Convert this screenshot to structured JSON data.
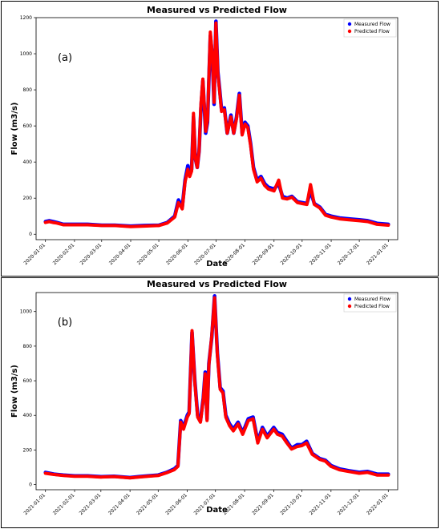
{
  "chart_data": [
    {
      "panel_label": "(a)",
      "type": "line",
      "title": "Measured vs Predicted Flow",
      "xlabel": "Date",
      "ylabel": "Flow (m3/s)",
      "x_ticks": [
        "2020-01-01",
        "2020-02-01",
        "2020-03-01",
        "2020-04-01",
        "2020-05-01",
        "2020-06-01",
        "2020-07-01",
        "2020-08-01",
        "2020-09-01",
        "2020-10-01",
        "2020-11-01",
        "2020-12-01",
        "2021-01-01"
      ],
      "y_ticks": [
        0,
        200,
        400,
        600,
        800,
        1000,
        1200
      ],
      "ylim": [
        -30,
        1200
      ],
      "legend_position": "top-right",
      "series": [
        {
          "name": "Measured Flow",
          "color": "#0000ff"
        },
        {
          "name": "Predicted Flow",
          "color": "#ff0000"
        }
      ],
      "x": [
        "2020-01-01",
        "2020-01-05",
        "2020-01-09",
        "2020-01-13",
        "2020-01-20",
        "2020-02-01",
        "2020-02-15",
        "2020-03-01",
        "2020-03-15",
        "2020-04-01",
        "2020-04-15",
        "2020-05-01",
        "2020-05-10",
        "2020-05-18",
        "2020-05-22",
        "2020-05-26",
        "2020-05-29",
        "2020-06-01",
        "2020-06-03",
        "2020-06-05",
        "2020-06-07",
        "2020-06-09",
        "2020-06-11",
        "2020-06-13",
        "2020-06-15",
        "2020-06-17",
        "2020-06-20",
        "2020-06-22",
        "2020-06-25",
        "2020-06-27",
        "2020-06-29",
        "2020-07-01",
        "2020-07-03",
        "2020-07-05",
        "2020-07-07",
        "2020-07-10",
        "2020-07-13",
        "2020-07-17",
        "2020-07-20",
        "2020-07-23",
        "2020-07-26",
        "2020-07-29",
        "2020-08-01",
        "2020-08-04",
        "2020-08-07",
        "2020-08-10",
        "2020-08-14",
        "2020-08-18",
        "2020-08-22",
        "2020-08-26",
        "2020-09-01",
        "2020-09-06",
        "2020-09-10",
        "2020-09-15",
        "2020-09-20",
        "2020-09-26",
        "2020-10-01",
        "2020-10-06",
        "2020-10-10",
        "2020-10-14",
        "2020-10-20",
        "2020-10-26",
        "2020-11-01",
        "2020-11-10",
        "2020-11-20",
        "2020-12-01",
        "2020-12-10",
        "2020-12-20",
        "2021-01-01"
      ],
      "measured": [
        70,
        75,
        70,
        65,
        55,
        55,
        55,
        50,
        50,
        45,
        48,
        50,
        65,
        100,
        190,
        150,
        300,
        380,
        330,
        360,
        650,
        420,
        370,
        460,
        700,
        850,
        560,
        620,
        1100,
        990,
        720,
        1180,
        900,
        800,
        690,
        700,
        560,
        660,
        560,
        650,
        780,
        560,
        620,
        600,
        500,
        370,
        300,
        320,
        280,
        260,
        250,
        280,
        210,
        200,
        210,
        180,
        175,
        170,
        240,
        170,
        150,
        110,
        100,
        90,
        85,
        80,
        75,
        60,
        55
      ],
      "predicted": [
        65,
        70,
        65,
        62,
        52,
        52,
        52,
        48,
        48,
        42,
        45,
        48,
        62,
        95,
        175,
        140,
        290,
        360,
        320,
        350,
        670,
        420,
        370,
        460,
        720,
        860,
        570,
        630,
        1120,
        1000,
        730,
        1170,
        890,
        790,
        680,
        690,
        560,
        650,
        560,
        640,
        770,
        550,
        610,
        590,
        490,
        360,
        290,
        310,
        270,
        250,
        240,
        300,
        200,
        195,
        205,
        175,
        170,
        165,
        275,
        165,
        145,
        105,
        95,
        85,
        80,
        75,
        70,
        55,
        50
      ]
    },
    {
      "panel_label": "(b)",
      "type": "line",
      "title": "Measured vs Predicted Flow",
      "xlabel": "Date",
      "ylabel": "Flow (m3/s)",
      "x_ticks": [
        "2021-01-01",
        "2021-02-01",
        "2021-03-01",
        "2021-04-01",
        "2021-05-01",
        "2021-06-01",
        "2021-07-01",
        "2021-08-01",
        "2021-09-01",
        "2021-10-01",
        "2021-11-01",
        "2021-12-01",
        "2022-01-01"
      ],
      "y_ticks": [
        0,
        200,
        400,
        600,
        800,
        1000
      ],
      "ylim": [
        -30,
        1110
      ],
      "legend_position": "top-right",
      "series": [
        {
          "name": "Measured Flow",
          "color": "#0000ff"
        },
        {
          "name": "Predicted Flow",
          "color": "#ff0000"
        }
      ],
      "x": [
        "2021-01-01",
        "2021-01-10",
        "2021-01-20",
        "2021-02-01",
        "2021-02-15",
        "2021-03-01",
        "2021-03-15",
        "2021-04-01",
        "2021-04-10",
        "2021-04-20",
        "2021-05-01",
        "2021-05-10",
        "2021-05-18",
        "2021-05-22",
        "2021-05-25",
        "2021-05-28",
        "2021-06-01",
        "2021-06-03",
        "2021-06-06",
        "2021-06-09",
        "2021-06-12",
        "2021-06-15",
        "2021-06-18",
        "2021-06-20",
        "2021-06-22",
        "2021-06-24",
        "2021-06-27",
        "2021-06-30",
        "2021-07-03",
        "2021-07-06",
        "2021-07-09",
        "2021-07-12",
        "2021-07-16",
        "2021-07-20",
        "2021-07-25",
        "2021-07-30",
        "2021-08-05",
        "2021-08-10",
        "2021-08-15",
        "2021-08-20",
        "2021-08-25",
        "2021-09-01",
        "2021-09-05",
        "2021-09-10",
        "2021-09-15",
        "2021-09-20",
        "2021-09-26",
        "2021-10-01",
        "2021-10-06",
        "2021-10-12",
        "2021-10-20",
        "2021-10-26",
        "2021-11-01",
        "2021-11-10",
        "2021-11-20",
        "2021-12-01",
        "2021-12-10",
        "2021-12-20",
        "2022-01-01"
      ],
      "measured": [
        70,
        60,
        55,
        50,
        50,
        45,
        48,
        40,
        45,
        50,
        55,
        70,
        90,
        110,
        370,
        330,
        400,
        420,
        880,
        600,
        400,
        370,
        500,
        650,
        380,
        700,
        850,
        1090,
        760,
        560,
        540,
        400,
        350,
        320,
        360,
        300,
        380,
        390,
        250,
        330,
        280,
        330,
        300,
        290,
        250,
        210,
        230,
        230,
        250,
        180,
        150,
        140,
        110,
        90,
        80,
        70,
        75,
        60,
        60
      ],
      "predicted": [
        65,
        58,
        52,
        48,
        48,
        43,
        46,
        38,
        43,
        48,
        52,
        68,
        85,
        105,
        360,
        320,
        390,
        410,
        890,
        590,
        390,
        360,
        490,
        640,
        370,
        690,
        860,
        1080,
        750,
        550,
        530,
        390,
        340,
        310,
        350,
        290,
        370,
        380,
        240,
        320,
        270,
        320,
        290,
        280,
        240,
        205,
        220,
        225,
        240,
        175,
        145,
        135,
        105,
        85,
        75,
        65,
        70,
        55,
        55
      ]
    }
  ]
}
